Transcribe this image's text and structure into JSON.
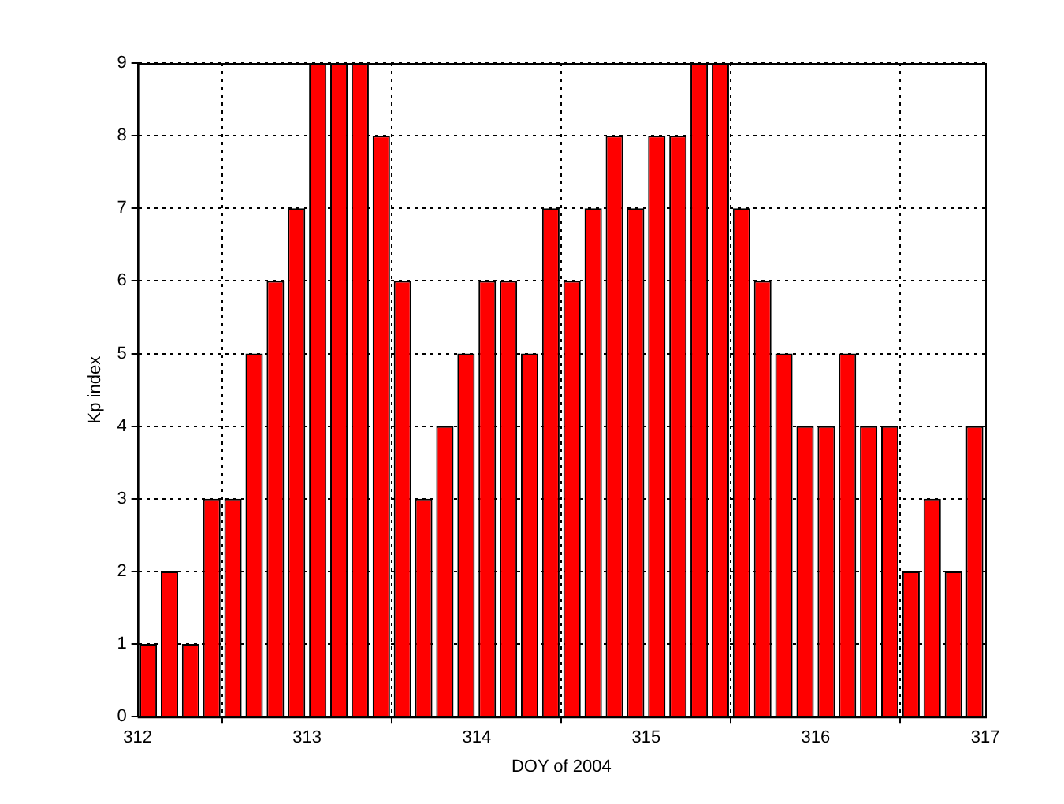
{
  "chart_data": {
    "type": "histogram",
    "xlabel": "DOY of 2004",
    "ylabel": "Kp index",
    "bins": [
      312,
      312.125,
      312.25,
      312.375,
      312.5,
      312.625,
      312.75,
      312.875,
      313,
      313.125,
      313.25,
      313.375,
      313.5,
      313.625,
      313.75,
      313.875,
      314,
      314.125,
      314.25,
      314.375,
      314.5,
      314.625,
      314.75,
      314.875,
      315,
      315.125,
      315.25,
      315.375,
      315.5,
      315.625,
      315.75,
      315.875,
      316,
      316.125,
      316.25,
      316.375,
      316.5,
      316.625,
      316.75,
      316.875,
      317
    ],
    "values": [
      1,
      2,
      1,
      3,
      3,
      5,
      6,
      7,
      9,
      9,
      9,
      8,
      6,
      3,
      4,
      5,
      6,
      6,
      5,
      7,
      6,
      7,
      8,
      7,
      8,
      8,
      9,
      9,
      7,
      6,
      5,
      4,
      4,
      5,
      4,
      4,
      2,
      3,
      2,
      4
    ],
    "color": "#ff0000",
    "xlim": [
      312,
      317
    ],
    "xticks": [
      312,
      313,
      314,
      315,
      316,
      317
    ],
    "ylim": [
      0,
      9
    ],
    "yticks": [
      0,
      1,
      2,
      3,
      4,
      5,
      6,
      7,
      8,
      9
    ],
    "grid": true
  }
}
